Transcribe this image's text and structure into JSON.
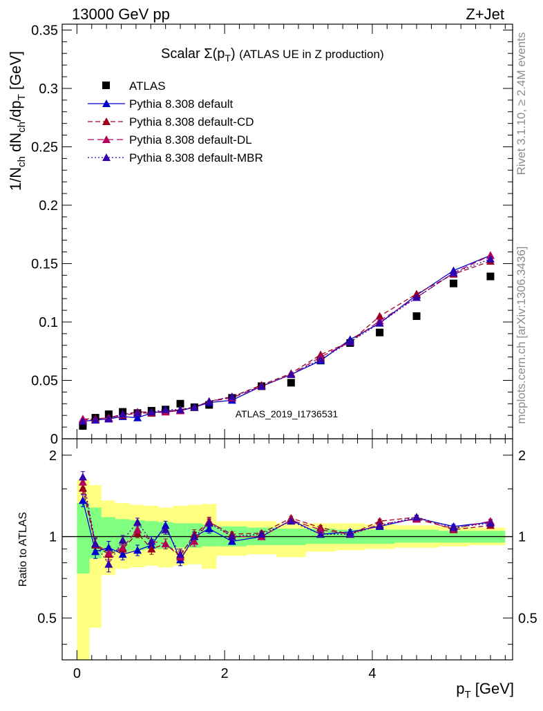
{
  "header": {
    "left": "13000 GeV pp",
    "right": "Z+Jet"
  },
  "plot_title": "Scalar Σ(p_T) (ATLAS UE in Z production)",
  "side_labels": {
    "rivet": "Rivet 3.1.10, ≥ 2.4M events",
    "mcplots": "mcplots.cern.ch [arXiv:1306.3436]"
  },
  "watermark": "ATLAS_2019_I1736531",
  "colors": {
    "data": "#000000",
    "default": "#0000cc",
    "cd": "#99001a",
    "dl": "#b3005a",
    "mbr": "#3300aa",
    "band_inner": "#80ff80",
    "band_outer": "#ffff80",
    "watermark": "#999999"
  },
  "chart_data": [
    {
      "type": "scatter",
      "panel": "main",
      "ylabel": "1/N_ch dN_ch/dp_T [GeV]",
      "xlim": [
        -0.2,
        5.9
      ],
      "ylim": [
        0,
        0.355
      ],
      "yticks": [
        0,
        0.05,
        0.1,
        0.15,
        0.2,
        0.25,
        0.3,
        0.35
      ],
      "ytick_labels": [
        "0",
        "0.05",
        "0.1",
        "0.15",
        "0.2",
        "0.25",
        "0.3",
        "0.35"
      ],
      "legend": "top-left",
      "x": [
        0.08,
        0.25,
        0.43,
        0.62,
        0.82,
        1.01,
        1.2,
        1.4,
        1.59,
        1.79,
        2.1,
        2.5,
        2.9,
        3.3,
        3.7,
        4.1,
        4.6,
        5.1,
        5.6
      ],
      "series": [
        {
          "name": "ATLAS",
          "style": "data",
          "values": [
            0.011,
            0.018,
            0.021,
            0.023,
            0.022,
            0.024,
            0.025,
            0.03,
            0.027,
            0.029,
            0.035,
            0.045,
            0.048,
            0.067,
            0.082,
            0.091,
            0.105,
            0.133,
            0.139
          ]
        },
        {
          "name": "Pythia 8.308 default",
          "style": "default",
          "values": [
            0.015,
            0.016,
            0.017,
            0.019,
            0.018,
            0.022,
            0.024,
            0.024,
            0.027,
            0.031,
            0.033,
            0.045,
            0.055,
            0.067,
            0.085,
            0.099,
            0.123,
            0.144,
            0.157
          ]
        },
        {
          "name": "Pythia 8.308 default-CD",
          "style": "cd",
          "values": [
            0.016,
            0.017,
            0.018,
            0.02,
            0.022,
            0.022,
            0.023,
            0.025,
            0.027,
            0.032,
            0.036,
            0.046,
            0.056,
            0.072,
            0.083,
            0.105,
            0.124,
            0.141,
            0.152
          ]
        },
        {
          "name": "Pythia 8.308 default-DL",
          "style": "dl",
          "values": [
            0.017,
            0.017,
            0.018,
            0.021,
            0.023,
            0.023,
            0.023,
            0.024,
            0.027,
            0.032,
            0.035,
            0.045,
            0.055,
            0.07,
            0.083,
            0.101,
            0.121,
            0.142,
            0.157
          ]
        },
        {
          "name": "Pythia 8.308 default-MBR",
          "style": "mbr",
          "values": [
            0.015,
            0.016,
            0.017,
            0.021,
            0.022,
            0.023,
            0.025,
            0.025,
            0.027,
            0.032,
            0.036,
            0.045,
            0.055,
            0.068,
            0.083,
            0.099,
            0.121,
            0.142,
            0.154
          ]
        }
      ]
    },
    {
      "type": "scatter",
      "panel": "ratio",
      "xlabel": "p_T [GeV]",
      "ylabel": "Ratio to ATLAS",
      "xlim": [
        -0.2,
        5.9
      ],
      "ylim": [
        0.35,
        2.3
      ],
      "log_y": true,
      "xticks": [
        0,
        2,
        4
      ],
      "xtick_labels": [
        "0",
        "2",
        "4"
      ],
      "yticks": [
        0.5,
        1,
        2
      ],
      "ytick_labels": [
        "0.5",
        "1",
        "2"
      ],
      "x": [
        0.08,
        0.25,
        0.43,
        0.62,
        0.82,
        1.01,
        1.2,
        1.4,
        1.59,
        1.79,
        2.1,
        2.5,
        2.9,
        3.3,
        3.7,
        4.1,
        4.6,
        5.1,
        5.6
      ],
      "bin_edges": [
        0.0,
        0.17,
        0.33,
        0.52,
        0.72,
        0.92,
        1.1,
        1.3,
        1.5,
        1.69,
        1.89,
        2.3,
        2.7,
        3.1,
        3.5,
        3.9,
        4.3,
        4.9,
        5.3,
        5.8
      ],
      "band_inner": {
        "lo": [
          0.73,
          0.83,
          0.87,
          0.88,
          0.89,
          0.9,
          0.9,
          0.91,
          0.91,
          0.92,
          0.92,
          0.93,
          0.93,
          0.94,
          0.94,
          0.94,
          0.95,
          0.95,
          0.95
        ],
        "hi": [
          1.33,
          1.28,
          1.18,
          1.16,
          1.15,
          1.14,
          1.13,
          1.12,
          1.12,
          1.11,
          1.09,
          1.08,
          1.07,
          1.07,
          1.06,
          1.06,
          1.06,
          1.05,
          1.05
        ]
      },
      "band_outer": {
        "lo": [
          0.35,
          0.46,
          0.72,
          0.76,
          0.77,
          0.78,
          0.77,
          0.78,
          0.79,
          0.76,
          0.85,
          0.86,
          0.84,
          0.88,
          0.89,
          0.9,
          0.91,
          0.92,
          0.93
        ],
        "hi": [
          1.62,
          1.55,
          1.36,
          1.33,
          1.31,
          1.3,
          1.28,
          1.3,
          1.31,
          1.32,
          1.14,
          1.14,
          1.12,
          1.12,
          1.12,
          1.11,
          1.1,
          1.09,
          1.08
        ]
      },
      "series": [
        {
          "name": "Pythia 8.308 default",
          "style": "default",
          "values": [
            1.36,
            0.88,
            0.91,
            0.86,
            0.89,
            0.93,
            1.1,
            0.82,
            1.0,
            1.07,
            0.96,
            1.0,
            1.15,
            1.02,
            1.04,
            1.09,
            1.17,
            1.09,
            1.13
          ],
          "err": [
            0.07,
            0.05,
            0.05,
            0.04,
            0.04,
            0.04,
            0.04,
            0.04,
            0.04,
            0.04,
            0.02,
            0.02,
            0.02,
            0.02,
            0.02,
            0.02,
            0.02,
            0.02,
            0.02
          ]
        },
        {
          "name": "Pythia 8.308 default-CD",
          "style": "cd",
          "values": [
            1.51,
            0.93,
            0.86,
            0.9,
            1.03,
            0.9,
            0.94,
            0.85,
            1.02,
            1.13,
            1.02,
            1.03,
            1.17,
            1.08,
            1.02,
            1.14,
            1.18,
            1.06,
            1.1
          ],
          "err": [
            0.07,
            0.05,
            0.05,
            0.04,
            0.04,
            0.04,
            0.04,
            0.04,
            0.04,
            0.04,
            0.02,
            0.02,
            0.02,
            0.02,
            0.02,
            0.02,
            0.02,
            0.02,
            0.02
          ]
        },
        {
          "name": "Pythia 8.308 default-DL",
          "style": "dl",
          "values": [
            1.59,
            0.94,
            0.87,
            0.91,
            1.06,
            0.96,
            0.94,
            0.84,
            0.96,
            1.14,
            1.0,
            1.0,
            1.15,
            1.06,
            1.02,
            1.11,
            1.16,
            1.07,
            1.14
          ],
          "err": [
            0.07,
            0.05,
            0.05,
            0.04,
            0.04,
            0.04,
            0.04,
            0.04,
            0.04,
            0.04,
            0.02,
            0.02,
            0.02,
            0.02,
            0.02,
            0.02,
            0.02,
            0.02,
            0.02
          ]
        },
        {
          "name": "Pythia 8.308 default-MBR",
          "style": "mbr",
          "values": [
            1.66,
            0.94,
            0.79,
            0.97,
            1.13,
            0.96,
            1.06,
            0.86,
            1.0,
            1.12,
            1.0,
            1.02,
            1.14,
            1.02,
            1.02,
            1.1,
            1.18,
            1.08,
            1.12
          ],
          "err": [
            0.08,
            0.05,
            0.05,
            0.04,
            0.04,
            0.04,
            0.04,
            0.04,
            0.04,
            0.04,
            0.02,
            0.02,
            0.02,
            0.02,
            0.02,
            0.02,
            0.02,
            0.02,
            0.02
          ]
        }
      ]
    }
  ]
}
